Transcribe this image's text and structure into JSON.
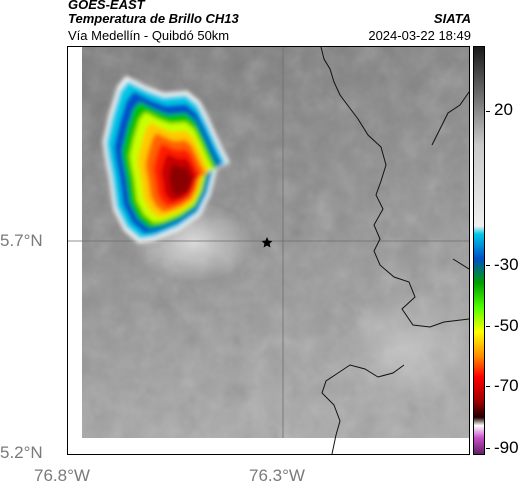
{
  "header": {
    "satellite": "GOES-EAST",
    "product": "Temperatura de Brillo CH13",
    "location": "Vía Medellín - Quibdó 50km",
    "organization": "SIATA",
    "timestamp": "2024-03-22 18:49"
  },
  "axes": {
    "y_labels": [
      "5.7°N",
      "5.2°N"
    ],
    "x_labels": [
      "76.8°W",
      "76.3°W"
    ]
  },
  "colorbar": {
    "labels": [
      "20",
      "-30",
      "-50",
      "-70",
      "-90"
    ],
    "colors": [
      "#1a1a1a",
      "#6e6e6e",
      "#c8c8c8",
      "#f0f0f0",
      "#00c8e6",
      "#0050c8",
      "#00a000",
      "#50ff00",
      "#ffff00",
      "#ff8c00",
      "#ff0000",
      "#a00000",
      "#1e0000",
      "#ffffff",
      "#c850c8",
      "#641e64"
    ]
  },
  "map": {
    "marker": "star-icon",
    "storm_colors": [
      "#00c8e6",
      "#0050c8",
      "#00c000",
      "#c8ff00",
      "#ffc800",
      "#ff6400",
      "#ff1e00",
      "#c80000",
      "#8c0000"
    ]
  }
}
